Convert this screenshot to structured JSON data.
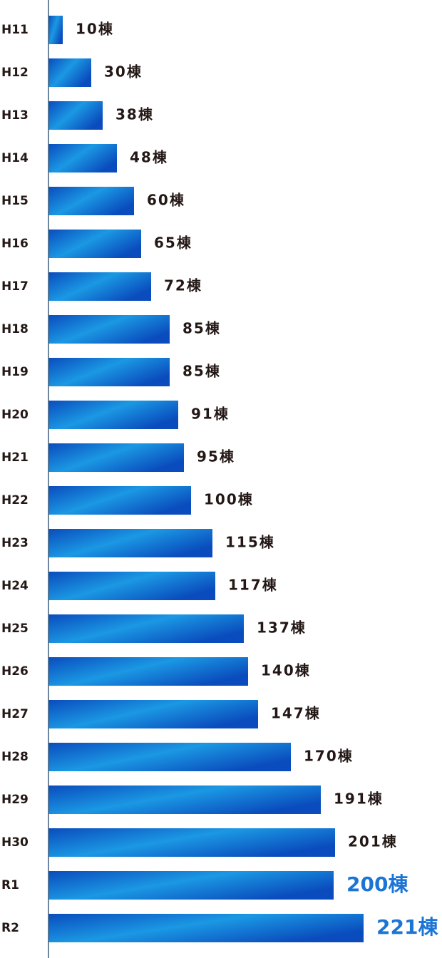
{
  "chart_data": {
    "type": "hbar",
    "categories": [
      "H11",
      "H12",
      "H13",
      "H14",
      "H15",
      "H16",
      "H17",
      "H18",
      "H19",
      "H20",
      "H21",
      "H22",
      "H23",
      "H24",
      "H25",
      "H26",
      "H27",
      "H28",
      "H29",
      "H30",
      "R1",
      "R2"
    ],
    "values": [
      10,
      30,
      38,
      48,
      60,
      65,
      72,
      85,
      85,
      91,
      95,
      100,
      115,
      117,
      137,
      140,
      147,
      170,
      191,
      201,
      200,
      221
    ],
    "value_labels": [
      "10棟",
      "30棟",
      "38棟",
      "48棟",
      "60棟",
      "65棟",
      "72棟",
      "85棟",
      "85棟",
      "91棟",
      "95棟",
      "100棟",
      "115棟",
      "117棟",
      "137棟",
      "140棟",
      "147棟",
      "170棟",
      "191棟",
      "201棟",
      "200棟",
      "221棟"
    ],
    "gradient": [
      "#0a4cbd",
      "#1b98e3",
      "#0a4cbd"
    ],
    "label_color": "#231815",
    "value_label_colors": [
      "#231815",
      "#231815",
      "#231815",
      "#231815",
      "#231815",
      "#231815",
      "#231815",
      "#231815",
      "#231815",
      "#231815",
      "#231815",
      "#231815",
      "#231815",
      "#231815",
      "#231815",
      "#231815",
      "#231815",
      "#231815",
      "#231815",
      "#231815",
      "#1c74d4",
      "#1c74d4"
    ],
    "axis_color": "#3f5f7f"
  }
}
